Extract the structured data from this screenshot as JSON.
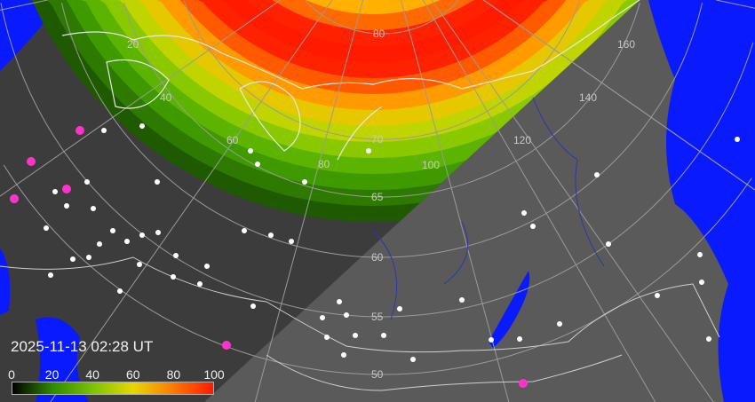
{
  "timestamp": "2025-11-13 02:28 UT",
  "colorbar": {
    "ticks": [
      "0",
      "20",
      "40",
      "60",
      "80",
      "100"
    ],
    "colors": [
      "#000000",
      "#2e8b00",
      "#7cc400",
      "#e6d800",
      "#ff7a00",
      "#ff1a00"
    ]
  },
  "latitude_labels": [
    "80",
    "70",
    "65",
    "60",
    "55",
    "50"
  ],
  "longitude_labels": [
    "20",
    "40",
    "60",
    "80",
    "100",
    "120",
    "140",
    "160"
  ],
  "colors": {
    "ocean": "#0a1aff",
    "land_night": "#3c3c3c",
    "land_day": "#595959",
    "city": "#ffffff",
    "station": "#ff33cc",
    "coastline": "#e0e0e0",
    "river": "#2a3aa8"
  }
}
